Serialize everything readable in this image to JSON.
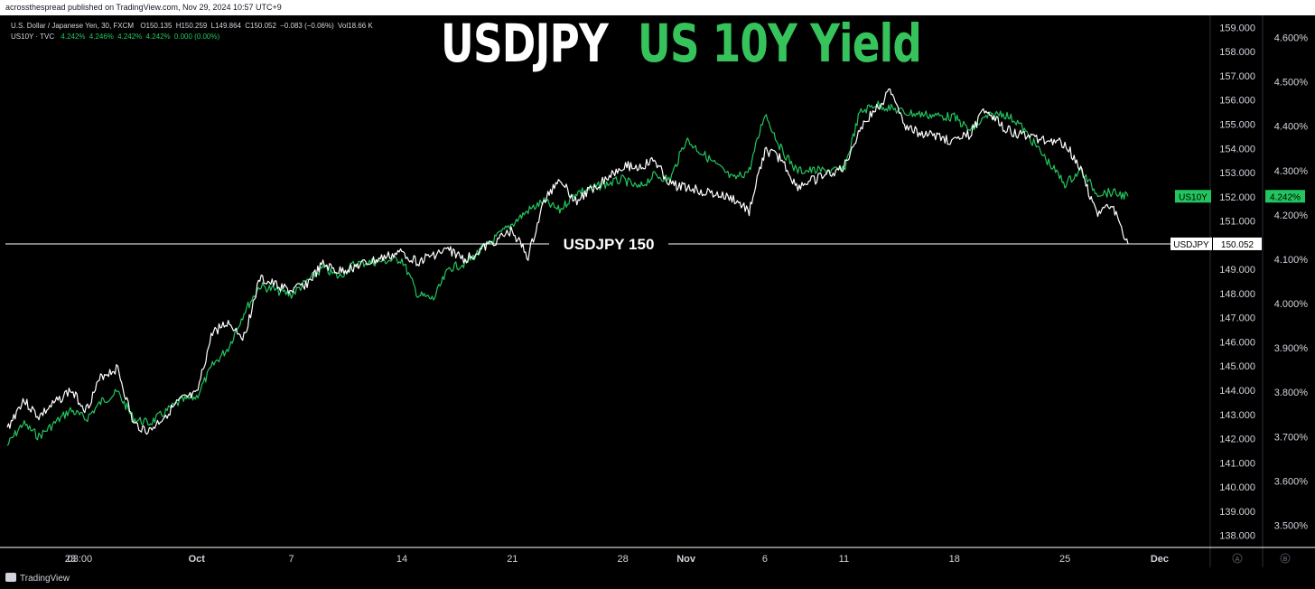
{
  "header": {
    "publisher": "acrossthespread published on TradingView.com, Nov 29, 2024 10:57 UTC+9"
  },
  "legend": {
    "usdjpy": {
      "name": "U.S. Dollar / Japanese Yen, 30, FXCM",
      "values": [
        "O150.135",
        "H150.259",
        "L149.864",
        "C150.052",
        "−0.083 (−0.06%)",
        "Vol18.66 K"
      ]
    },
    "us10y": {
      "name": "US10Y · TVC",
      "values": [
        "4.242%",
        "4.246%",
        "4.242%",
        "4.242%",
        "0.000 (0.00%)"
      ]
    }
  },
  "titles": {
    "left": "USDJPY",
    "right": "US 10Y Yield"
  },
  "colors": {
    "usdjpy_line": "#ffffff",
    "us10y_line": "#22c55e",
    "background": "#000000",
    "axis_text": "#d1d4dc",
    "us10y_badge": "#22c55e"
  },
  "footer": {
    "brand": "TradingView",
    "axis_buttons": [
      "A",
      "B"
    ]
  },
  "chart_data": {
    "type": "line",
    "x_tick_labels": [
      "23",
      "03:00",
      "Oct",
      "7",
      "14",
      "21",
      "28",
      "Nov",
      "6",
      "11",
      "18",
      "25",
      "Dec"
    ],
    "right_axis": {
      "label_values": [
        "159.000",
        "158.000",
        "157.000",
        "156.000",
        "155.000",
        "154.000",
        "153.000",
        "152.000",
        "151.000",
        "149.000",
        "148.000",
        "147.000",
        "146.000",
        "145.000",
        "144.000",
        "143.000",
        "142.000",
        "141.000",
        "140.000",
        "139.000",
        "138.000"
      ],
      "range": [
        137.5,
        159.5
      ]
    },
    "yield_axis": {
      "label_values": [
        "4.600%",
        "4.500%",
        "4.400%",
        "4.300%",
        "4.200%",
        "4.100%",
        "4.000%",
        "3.900%",
        "3.800%",
        "3.700%",
        "3.600%",
        "3.500%"
      ],
      "range": [
        3.45,
        4.65
      ]
    },
    "series": [
      {
        "name": "USDJPY",
        "color": "#ffffff",
        "axis": "right",
        "points": [
          [
            "Sep 19",
            142.4
          ],
          [
            "Sep 20",
            143.6
          ],
          [
            "Sep 21",
            142.9
          ],
          [
            "Sep 23",
            144.0
          ],
          [
            "Sep 24",
            143.2
          ],
          [
            "Sep 25",
            144.6
          ],
          [
            "Sep 26",
            144.9
          ],
          [
            "Sep 27",
            142.6
          ],
          [
            "Sep 28",
            142.3
          ],
          [
            "Sep 30",
            143.6
          ],
          [
            "Oct 1",
            143.8
          ],
          [
            "Oct 2",
            146.4
          ],
          [
            "Oct 3",
            146.8
          ],
          [
            "Oct 4",
            146.2
          ],
          [
            "Oct 5",
            148.6
          ],
          [
            "Oct 7",
            148.1
          ],
          [
            "Oct 8",
            148.4
          ],
          [
            "Oct 9",
            149.2
          ],
          [
            "Oct 10",
            148.9
          ],
          [
            "Oct 11",
            149.1
          ],
          [
            "Oct 14",
            149.7
          ],
          [
            "Oct 15",
            149.3
          ],
          [
            "Oct 16",
            149.6
          ],
          [
            "Oct 17",
            149.8
          ],
          [
            "Oct 18",
            149.4
          ],
          [
            "Oct 21",
            150.6
          ],
          [
            "Oct 22",
            149.5
          ],
          [
            "Oct 23",
            151.8
          ],
          [
            "Oct 24",
            152.8
          ],
          [
            "Oct 25",
            151.8
          ],
          [
            "Oct 28",
            153.3
          ],
          [
            "Oct 29",
            153.2
          ],
          [
            "Oct 30",
            153.5
          ],
          [
            "Oct 31",
            152.5
          ],
          [
            "Nov 1",
            152.4
          ],
          [
            "Nov 4",
            151.9
          ],
          [
            "Nov 5",
            151.4
          ],
          [
            "Nov 6",
            153.9
          ],
          [
            "Nov 7",
            153.6
          ],
          [
            "Nov 8",
            152.4
          ],
          [
            "Nov 11",
            153.2
          ],
          [
            "Nov 12",
            154.8
          ],
          [
            "Nov 13",
            155.6
          ],
          [
            "Nov 14",
            156.4
          ],
          [
            "Nov 15",
            154.8
          ],
          [
            "Nov 18",
            154.3
          ],
          [
            "Nov 19",
            154.6
          ],
          [
            "Nov 20",
            155.7
          ],
          [
            "Nov 21",
            154.9
          ],
          [
            "Nov 22",
            154.6
          ],
          [
            "Nov 25",
            154.2
          ],
          [
            "Nov 26",
            153.2
          ],
          [
            "Nov 27",
            151.3
          ],
          [
            "Nov 28",
            151.6
          ],
          [
            "Nov 29",
            150.05
          ]
        ]
      },
      {
        "name": "US10Y",
        "color": "#22c55e",
        "axis": "yield",
        "points": [
          [
            "Sep 19",
            3.68
          ],
          [
            "Sep 20",
            3.73
          ],
          [
            "Sep 21",
            3.7
          ],
          [
            "Sep 23",
            3.76
          ],
          [
            "Sep 24",
            3.74
          ],
          [
            "Sep 25",
            3.78
          ],
          [
            "Sep 26",
            3.8
          ],
          [
            "Sep 27",
            3.74
          ],
          [
            "Sep 28",
            3.73
          ],
          [
            "Sep 30",
            3.78
          ],
          [
            "Oct 1",
            3.79
          ],
          [
            "Oct 2",
            3.86
          ],
          [
            "Oct 3",
            3.9
          ],
          [
            "Oct 4",
            3.98
          ],
          [
            "Oct 5",
            4.04
          ],
          [
            "Oct 7",
            4.02
          ],
          [
            "Oct 8",
            4.05
          ],
          [
            "Oct 9",
            4.08
          ],
          [
            "Oct 10",
            4.06
          ],
          [
            "Oct 11",
            4.09
          ],
          [
            "Oct 14",
            4.1
          ],
          [
            "Oct 15",
            4.02
          ],
          [
            "Oct 16",
            4.01
          ],
          [
            "Oct 17",
            4.08
          ],
          [
            "Oct 18",
            4.09
          ],
          [
            "Oct 21",
            4.18
          ],
          [
            "Oct 22",
            4.21
          ],
          [
            "Oct 23",
            4.23
          ],
          [
            "Oct 24",
            4.21
          ],
          [
            "Oct 25",
            4.25
          ],
          [
            "Oct 28",
            4.28
          ],
          [
            "Oct 29",
            4.26
          ],
          [
            "Oct 30",
            4.29
          ],
          [
            "Oct 31",
            4.28
          ],
          [
            "Nov 1",
            4.37
          ],
          [
            "Nov 4",
            4.28
          ],
          [
            "Nov 5",
            4.3
          ],
          [
            "Nov 6",
            4.43
          ],
          [
            "Nov 7",
            4.35
          ],
          [
            "Nov 8",
            4.3
          ],
          [
            "Nov 11",
            4.3
          ],
          [
            "Nov 12",
            4.43
          ],
          [
            "Nov 13",
            4.45
          ],
          [
            "Nov 14",
            4.44
          ],
          [
            "Nov 15",
            4.43
          ],
          [
            "Nov 18",
            4.42
          ],
          [
            "Nov 19",
            4.39
          ],
          [
            "Nov 20",
            4.42
          ],
          [
            "Nov 21",
            4.43
          ],
          [
            "Nov 22",
            4.41
          ],
          [
            "Nov 25",
            4.27
          ],
          [
            "Nov 26",
            4.3
          ],
          [
            "Nov 27",
            4.25
          ],
          [
            "Nov 28",
            4.25
          ],
          [
            "Nov 29",
            4.242
          ]
        ]
      }
    ],
    "reference_line": {
      "label": "USDJPY 150",
      "value": 150.052
    },
    "last_value_badges": [
      {
        "name": "US10Y",
        "value": "4.242%"
      },
      {
        "name": "USDJPY",
        "value": "150.052"
      }
    ]
  }
}
